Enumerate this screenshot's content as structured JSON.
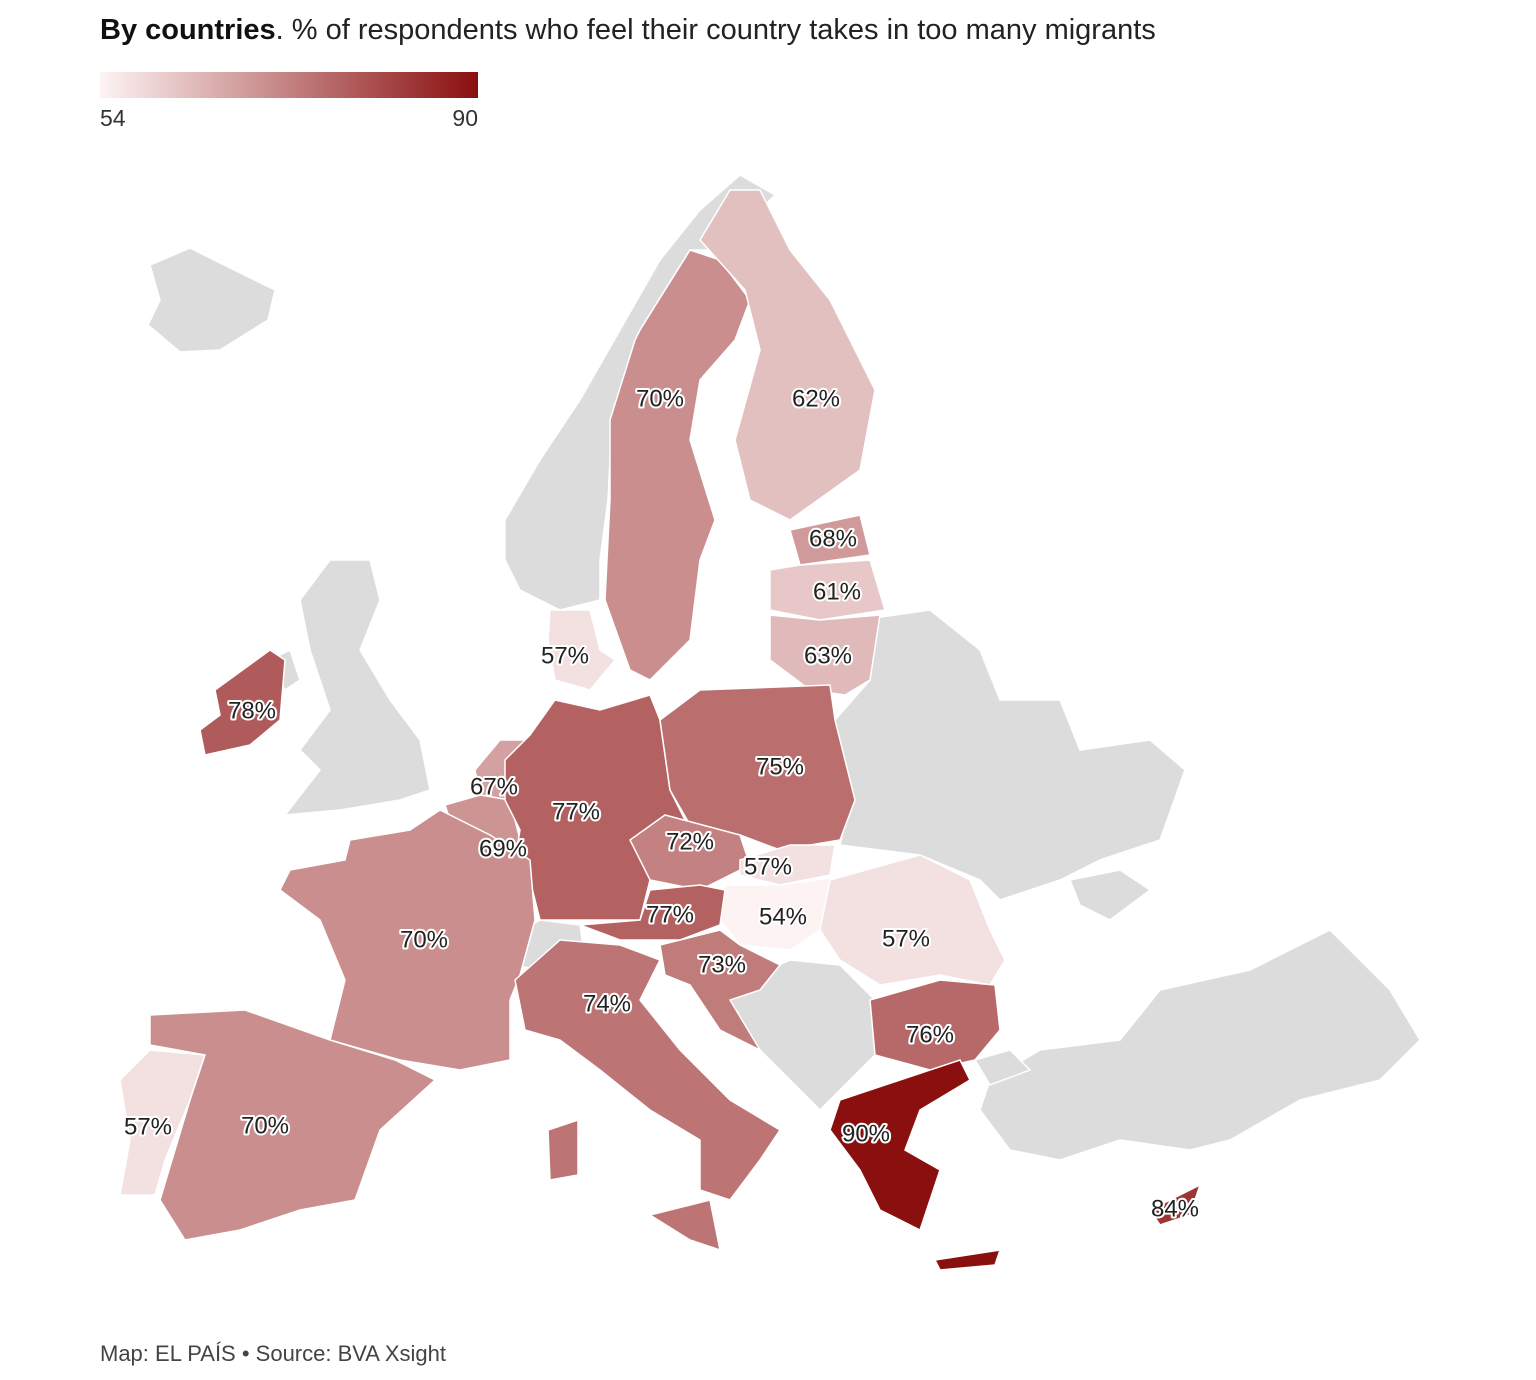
{
  "chart_data": {
    "type": "choropleth",
    "title": "By countries",
    "subtitle": ". % of respondents who feel their country takes in too many migrants",
    "colorscale": [
      "#fdf3f3",
      "#8a0f0f"
    ],
    "colorbar_range": [
      54,
      90
    ],
    "colorbar_ticks": [
      54,
      90
    ],
    "values": [
      70,
      62,
      68,
      61,
      63,
      57,
      78,
      67,
      69,
      77,
      75,
      72,
      57,
      54,
      77,
      73,
      57,
      70,
      74,
      76,
      57,
      70,
      90,
      84
    ],
    "value_labels": [
      "70%",
      "62%",
      "68%",
      "61%",
      "63%",
      "57%",
      "78%",
      "67%",
      "69%",
      "77%",
      "75%",
      "72%",
      "57%",
      "54%",
      "77%",
      "73%",
      "57%",
      "70%",
      "74%",
      "76%",
      "57%",
      "70%",
      "90%",
      "84%"
    ],
    "source": "Map: EL PAÍS • Source: BVA Xsight"
  }
}
